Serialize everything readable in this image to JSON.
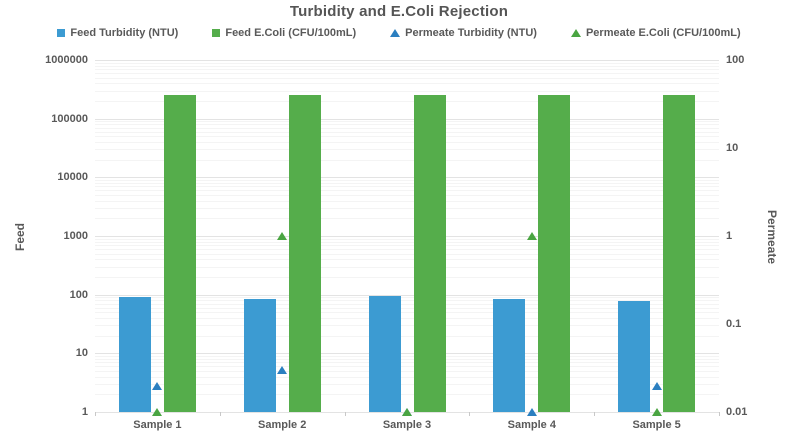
{
  "title": "Turbidity and E.Coli Rejection",
  "colors": {
    "feed_turbidity": "#3C9BD2",
    "feed_ecoli": "#55AD4B",
    "permeate_turbidity": "#2B7FC0",
    "permeate_ecoli": "#4AA542",
    "grid_major": "#E3E3E3",
    "grid_minor": "#F4F4F4",
    "axis_line": "#C8C8C8",
    "text": "#595959"
  },
  "legend": [
    {
      "slug": "feed-turbidity",
      "label": "Feed Turbidity (NTU)",
      "marker": "square",
      "color_key": "feed_turbidity"
    },
    {
      "slug": "feed-ecoli",
      "label": "Feed E.Coli (CFU/100mL)",
      "marker": "square",
      "color_key": "feed_ecoli"
    },
    {
      "slug": "permeate-turbidity",
      "label": "Permeate Turbidity (NTU)",
      "marker": "triangle",
      "color_key": "permeate_turbidity"
    },
    {
      "slug": "permeate-ecoli",
      "label": "Permeate E.Coli (CFU/100mL)",
      "marker": "triangle",
      "color_key": "permeate_ecoli"
    }
  ],
  "chart_data": {
    "type": "bar",
    "title": "Turbidity and E.Coli Rejection",
    "categories": [
      "Sample 1",
      "Sample 2",
      "Sample 3",
      "Sample 4",
      "Sample 5"
    ],
    "series": [
      {
        "slug": "feed-turbidity",
        "name": "Feed Turbidity (NTU)",
        "render": "bar",
        "axis": "left",
        "color_key": "feed_turbidity",
        "values": [
          93,
          86,
          95,
          85,
          79
        ]
      },
      {
        "slug": "feed-ecoli",
        "name": "Feed E.Coli (CFU/100mL)",
        "render": "bar",
        "axis": "left",
        "color_key": "feed_ecoli",
        "values": [
          250000,
          250000,
          250000,
          250000,
          250000
        ]
      },
      {
        "slug": "permeate-turbidity",
        "name": "Permeate Turbidity (NTU)",
        "render": "point",
        "axis": "right",
        "color_key": "permeate_turbidity",
        "values": [
          0.02,
          0.03,
          0.01,
          0.01,
          0.02
        ]
      },
      {
        "slug": "permeate-ecoli",
        "name": "Permeate E.Coli (CFU/100mL)",
        "render": "point",
        "axis": "right",
        "color_key": "permeate_ecoli",
        "values": [
          0.01,
          1,
          0.01,
          1,
          0.01
        ]
      }
    ],
    "left_axis": {
      "label": "Feed",
      "scale": "log",
      "min": 1,
      "max": 1000000,
      "tick_labels": [
        "1000000",
        "100000",
        "10000",
        "1000",
        "100",
        "10",
        "1"
      ]
    },
    "right_axis": {
      "label": "Permeate",
      "scale": "log",
      "min": 0.01,
      "max": 100,
      "tick_labels": [
        "100",
        "10",
        "1",
        "0.1",
        "0.01"
      ]
    },
    "grid": true,
    "legend_position": "top"
  }
}
